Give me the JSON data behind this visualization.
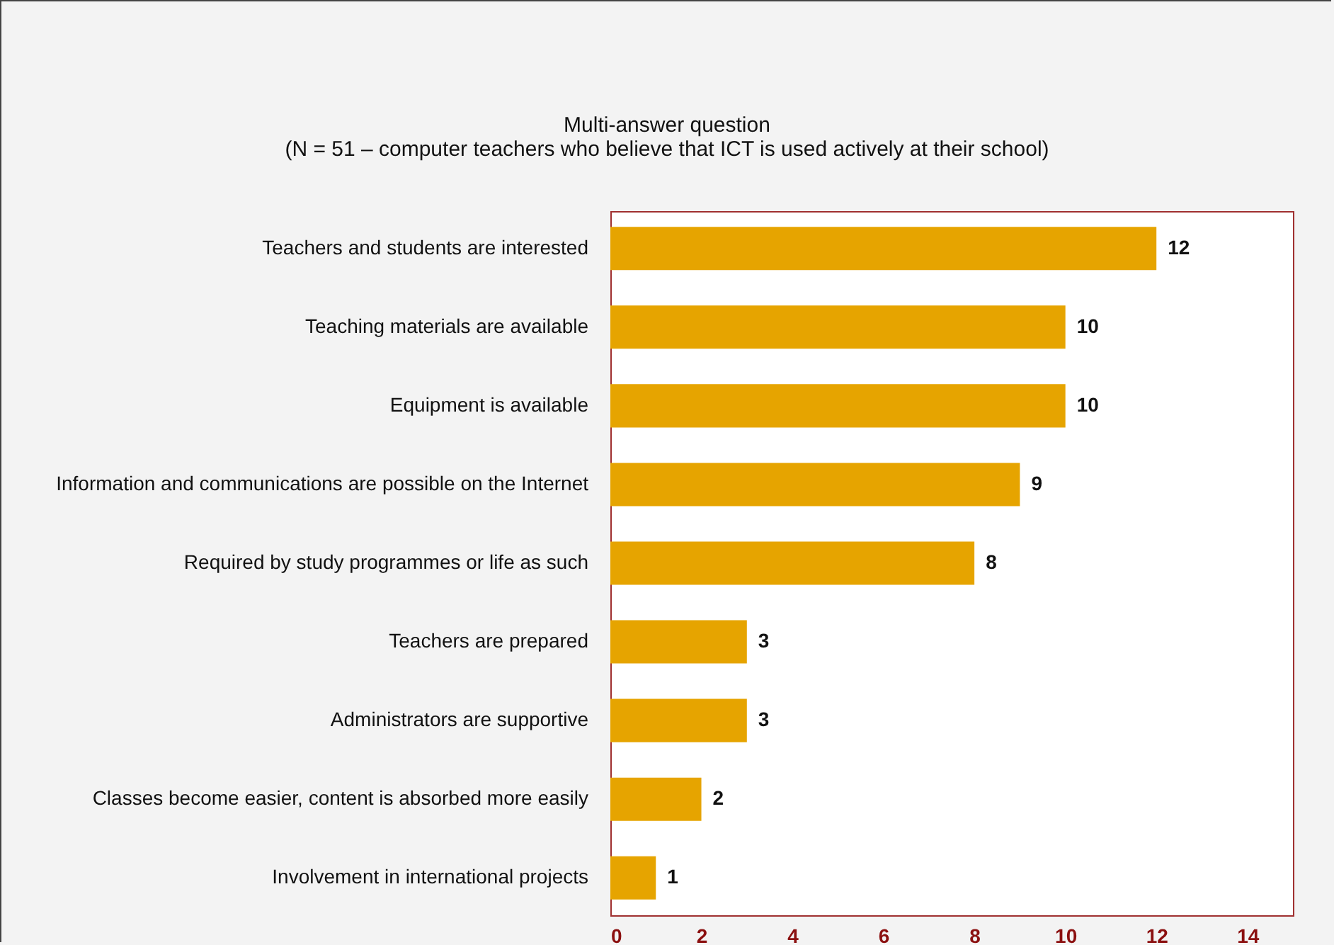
{
  "chart_data": {
    "type": "bar",
    "orientation": "horizontal",
    "title": "Multi-answer question",
    "subtitle": "(N = 51 – computer teachers who believe that ICT is used actively at their school)",
    "categories": [
      "Teachers and students are interested",
      "Teaching materials are available",
      "Equipment is available",
      "Information and communications are possible on the Internet",
      "Required by study programmes or life as such",
      "Teachers are prepared",
      "Administrators are supportive",
      "Classes become easier, content is absorbed more easily",
      "Involvement in international projects"
    ],
    "values": [
      12,
      10,
      10,
      9,
      8,
      3,
      3,
      2,
      1
    ],
    "color": "#e6a400",
    "xlim": [
      0,
      15
    ],
    "xticks": [
      0,
      2,
      4,
      6,
      8,
      10,
      12,
      14
    ],
    "grid": false,
    "data_labels": true
  }
}
